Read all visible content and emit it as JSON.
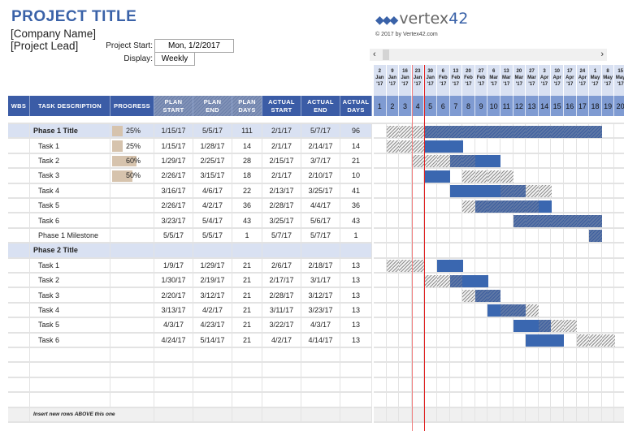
{
  "header": {
    "title": "PROJECT TITLE",
    "company": "[Company Name]",
    "lead": "[Project Lead]",
    "project_start_label": "Project Start:",
    "project_start_value": "Mon, 1/2/2017",
    "display_label": "Display:",
    "display_value": "Weekly"
  },
  "branding": {
    "logo_mark": "⁴⁴⁴",
    "logo_text": "vertex",
    "logo_num": "42",
    "copyright": "© 2017 by Vertex42.com"
  },
  "scrollbar": {
    "left": "‹",
    "right": "›"
  },
  "columns": [
    "WBS",
    "TASK DESCRIPTION",
    "PROGRESS",
    "PLAN START",
    "PLAN END",
    "PLAN DAYS",
    "ACTUAL START",
    "ACTUAL END",
    "ACTUAL DAYS"
  ],
  "project_start": "2017-01-02",
  "weeks": [
    {
      "n": "1",
      "d": "2",
      "m": "Jan",
      "y": "'17"
    },
    {
      "n": "2",
      "d": "9",
      "m": "Jan",
      "y": "'17"
    },
    {
      "n": "3",
      "d": "16",
      "m": "Jan",
      "y": "'17"
    },
    {
      "n": "4",
      "d": "23",
      "m": "Jan",
      "y": "'17"
    },
    {
      "n": "5",
      "d": "30",
      "m": "Jan",
      "y": "'17"
    },
    {
      "n": "6",
      "d": "6",
      "m": "Feb",
      "y": "'17"
    },
    {
      "n": "7",
      "d": "13",
      "m": "Feb",
      "y": "'17"
    },
    {
      "n": "8",
      "d": "20",
      "m": "Feb",
      "y": "'17"
    },
    {
      "n": "9",
      "d": "27",
      "m": "Feb",
      "y": "'17"
    },
    {
      "n": "10",
      "d": "6",
      "m": "Mar",
      "y": "'17"
    },
    {
      "n": "11",
      "d": "13",
      "m": "Mar",
      "y": "'17"
    },
    {
      "n": "12",
      "d": "20",
      "m": "Mar",
      "y": "'17"
    },
    {
      "n": "13",
      "d": "27",
      "m": "Mar",
      "y": "'17"
    },
    {
      "n": "14",
      "d": "3",
      "m": "Apr",
      "y": "'17"
    },
    {
      "n": "15",
      "d": "10",
      "m": "Apr",
      "y": "'17"
    },
    {
      "n": "16",
      "d": "17",
      "m": "Apr",
      "y": "'17"
    },
    {
      "n": "17",
      "d": "24",
      "m": "Apr",
      "y": "'17"
    },
    {
      "n": "18",
      "d": "1",
      "m": "May",
      "y": "'17"
    },
    {
      "n": "19",
      "d": "8",
      "m": "May",
      "y": "'17"
    },
    {
      "n": "20",
      "d": "15",
      "m": "May",
      "y": "'17"
    }
  ],
  "rows": [
    {
      "type": "phase",
      "task": "Phase 1 Title",
      "progress": 25,
      "progress_label": "25%",
      "ps": "1/15/17",
      "pe": "5/5/17",
      "pd": "111",
      "as": "2/1/17",
      "ae": "5/7/17",
      "ad": "96"
    },
    {
      "type": "task",
      "task": "Task 1",
      "progress": 25,
      "progress_label": "25%",
      "ps": "1/15/17",
      "pe": "1/28/17",
      "pd": "14",
      "as": "2/1/17",
      "ae": "2/14/17",
      "ad": "14"
    },
    {
      "type": "task",
      "task": "Task 2",
      "progress": 60,
      "progress_label": "60%",
      "ps": "1/29/17",
      "pe": "2/25/17",
      "pd": "28",
      "as": "2/15/17",
      "ae": "3/7/17",
      "ad": "21"
    },
    {
      "type": "task",
      "task": "Task 3",
      "progress": 50,
      "progress_label": "50%",
      "ps": "2/26/17",
      "pe": "3/15/17",
      "pd": "18",
      "as": "2/1/17",
      "ae": "2/10/17",
      "ad": "10"
    },
    {
      "type": "task",
      "task": "Task 4",
      "ps": "3/16/17",
      "pe": "4/6/17",
      "pd": "22",
      "as": "2/13/17",
      "ae": "3/25/17",
      "ad": "41"
    },
    {
      "type": "task",
      "task": "Task 5",
      "ps": "2/26/17",
      "pe": "4/2/17",
      "pd": "36",
      "as": "2/28/17",
      "ae": "4/4/17",
      "ad": "36"
    },
    {
      "type": "task",
      "task": "Task 6",
      "ps": "3/23/17",
      "pe": "5/4/17",
      "pd": "43",
      "as": "3/25/17",
      "ae": "5/6/17",
      "ad": "43"
    },
    {
      "type": "task",
      "task": "Phase 1 Milestone",
      "ps": "5/5/17",
      "pe": "5/5/17",
      "pd": "1",
      "as": "5/7/17",
      "ae": "5/7/17",
      "ad": "1"
    },
    {
      "type": "phase",
      "task": "Phase 2 Title"
    },
    {
      "type": "task",
      "task": "Task 1",
      "ps": "1/9/17",
      "pe": "1/29/17",
      "pd": "21",
      "as": "2/6/17",
      "ae": "2/18/17",
      "ad": "13"
    },
    {
      "type": "task",
      "task": "Task 2",
      "ps": "1/30/17",
      "pe": "2/19/17",
      "pd": "21",
      "as": "2/17/17",
      "ae": "3/1/17",
      "ad": "13"
    },
    {
      "type": "task",
      "task": "Task 3",
      "ps": "2/20/17",
      "pe": "3/12/17",
      "pd": "21",
      "as": "2/28/17",
      "ae": "3/12/17",
      "ad": "13"
    },
    {
      "type": "task",
      "task": "Task 4",
      "ps": "3/13/17",
      "pe": "4/2/17",
      "pd": "21",
      "as": "3/11/17",
      "ae": "3/23/17",
      "ad": "13"
    },
    {
      "type": "task",
      "task": "Task 5",
      "ps": "4/3/17",
      "pe": "4/23/17",
      "pd": "21",
      "as": "3/22/17",
      "ae": "4/3/17",
      "ad": "13"
    },
    {
      "type": "task",
      "task": "Task 6",
      "ps": "4/24/17",
      "pe": "5/14/17",
      "pd": "21",
      "as": "4/2/17",
      "ae": "4/14/17",
      "ad": "13"
    },
    {
      "type": "empty"
    },
    {
      "type": "empty"
    },
    {
      "type": "empty"
    },
    {
      "type": "empty"
    },
    {
      "type": "footer",
      "task": "Insert new rows ABOVE this one"
    }
  ],
  "colors": {
    "header_blue": "#3b5ca6",
    "phase_row": "#d9e1f2",
    "progress": "#d6c3ad",
    "actual_bar": "#3a67b0",
    "today_line": "#e02020"
  }
}
